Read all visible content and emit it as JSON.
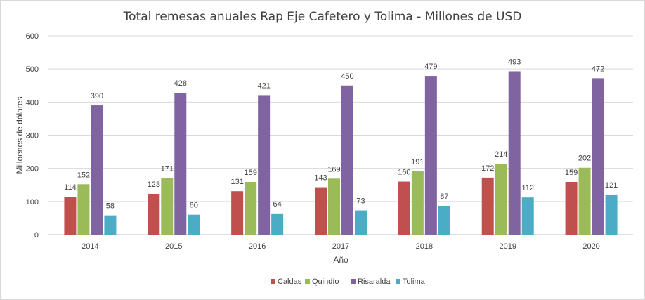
{
  "chart_data": {
    "type": "bar",
    "title": "Total remesas anuales Rap Eje Cafetero y Tolima - Millones de USD",
    "xlabel": "Año",
    "ylabel": "Milloenes de dólares",
    "ylim": [
      0,
      600
    ],
    "yticks": [
      0,
      100,
      200,
      300,
      400,
      500,
      600
    ],
    "grid": true,
    "legend_position": "bottom",
    "categories": [
      "2014",
      "2015",
      "2016",
      "2017",
      "2018",
      "2019",
      "2020"
    ],
    "series": [
      {
        "name": "Caldas",
        "color": "#c0504d",
        "values": [
          114,
          123,
          131,
          143,
          160,
          172,
          159
        ]
      },
      {
        "name": "Quindío",
        "color": "#9bbb59",
        "values": [
          152,
          171,
          159,
          169,
          191,
          214,
          202
        ]
      },
      {
        "name": "Risaralda",
        "color": "#8064a2",
        "values": [
          390,
          428,
          421,
          450,
          479,
          493,
          472
        ]
      },
      {
        "name": "Tolima",
        "color": "#4bacc6",
        "values": [
          58,
          60,
          64,
          73,
          87,
          112,
          121
        ]
      }
    ]
  }
}
